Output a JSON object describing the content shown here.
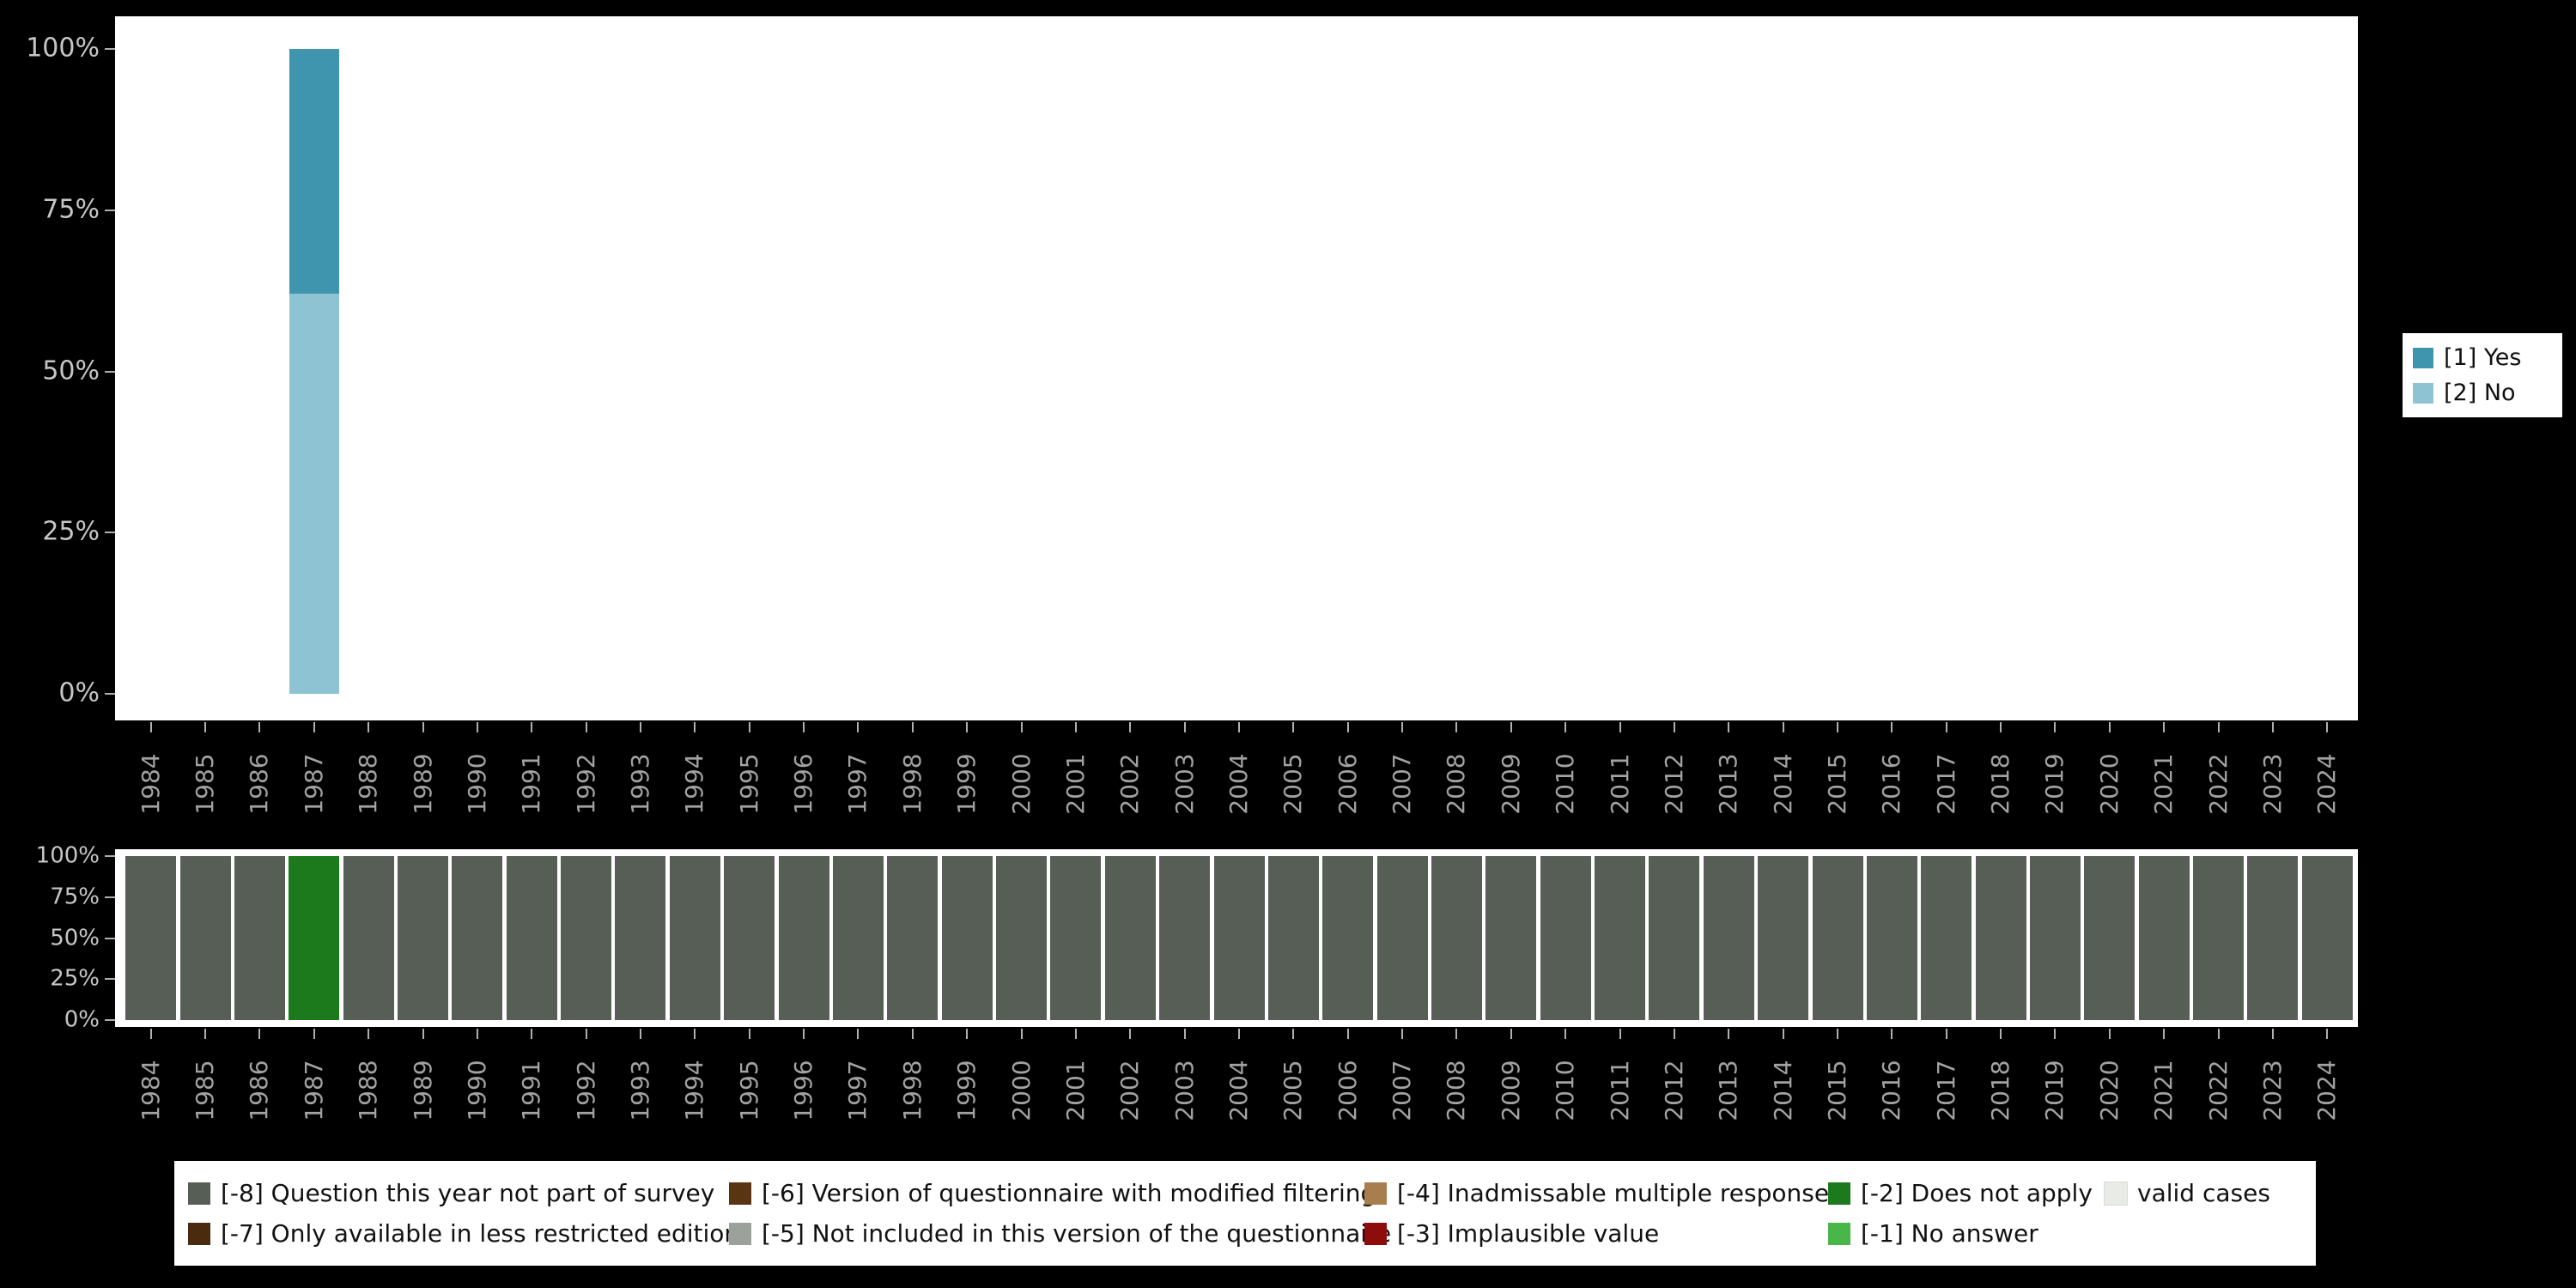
{
  "page": {
    "background": "#000000"
  },
  "palette": {
    "yes": "#3f95ad",
    "no": "#8ec3d4",
    "m8": "#565e56",
    "m7": "#4a2b0d",
    "m6": "#5a3513",
    "m5": "#9aa29a",
    "m4": "#a87e4e",
    "m3": "#8e0c0c",
    "m2": "#1c791c",
    "m1": "#49b649",
    "valid": "#e8ebe6"
  },
  "years": [
    "1984",
    "1985",
    "1986",
    "1987",
    "1988",
    "1989",
    "1990",
    "1991",
    "1992",
    "1993",
    "1994",
    "1995",
    "1996",
    "1997",
    "1998",
    "1999",
    "2000",
    "2001",
    "2002",
    "2003",
    "2004",
    "2005",
    "2006",
    "2007",
    "2008",
    "2009",
    "2010",
    "2011",
    "2012",
    "2013",
    "2014",
    "2015",
    "2016",
    "2017",
    "2018",
    "2019",
    "2020",
    "2021",
    "2022",
    "2023",
    "2024"
  ],
  "top_chart": {
    "y_tick_labels": [
      "100%",
      "75%",
      "50%",
      "25%",
      "0%"
    ],
    "legend": [
      {
        "label": "[1] Yes",
        "color_key": "yes"
      },
      {
        "label": "[2] No",
        "color_key": "no"
      }
    ],
    "bars": [
      {
        "year": "1987",
        "segments": [
          {
            "name": "[1] Yes",
            "color_key": "yes",
            "from": 62,
            "to": 100
          },
          {
            "name": "[2] No",
            "color_key": "no",
            "from": 0,
            "to": 62
          }
        ]
      }
    ]
  },
  "bottom_chart": {
    "y_tick_labels": [
      "100%",
      "75%",
      "50%",
      "25%",
      "0%"
    ],
    "default_key": "m8",
    "exceptions": {
      "1987": "m2"
    },
    "legend_rows": [
      [
        {
          "label": "[-8] Question this year not part of survey",
          "color_key": "m8"
        },
        {
          "label": "[-6] Version of questionnaire with modified filtering",
          "color_key": "m6"
        },
        {
          "label": "[-4] Inadmissable multiple response",
          "color_key": "m4"
        },
        {
          "label": "[-2] Does not apply",
          "color_key": "m2"
        },
        {
          "label": "valid cases",
          "color_key": "valid"
        }
      ],
      [
        {
          "label": "[-7] Only available in less restricted edition",
          "color_key": "m7"
        },
        {
          "label": "[-5] Not included in this version of the questionnaire",
          "color_key": "m5"
        },
        {
          "label": "[-3] Implausible value",
          "color_key": "m3"
        },
        {
          "label": "[-1] No answer",
          "color_key": "m1"
        }
      ]
    ]
  },
  "chart_data": [
    {
      "type": "bar",
      "stacked": true,
      "title": "",
      "categories": [
        "1984",
        "1985",
        "1986",
        "1987",
        "1988",
        "1989",
        "1990",
        "1991",
        "1992",
        "1993",
        "1994",
        "1995",
        "1996",
        "1997",
        "1998",
        "1999",
        "2000",
        "2001",
        "2002",
        "2003",
        "2004",
        "2005",
        "2006",
        "2007",
        "2008",
        "2009",
        "2010",
        "2011",
        "2012",
        "2013",
        "2014",
        "2015",
        "2016",
        "2017",
        "2018",
        "2019",
        "2020",
        "2021",
        "2022",
        "2023",
        "2024"
      ],
      "series": [
        {
          "name": "[1] Yes",
          "color": "#3f95ad",
          "values": [
            null,
            null,
            null,
            38,
            null,
            null,
            null,
            null,
            null,
            null,
            null,
            null,
            null,
            null,
            null,
            null,
            null,
            null,
            null,
            null,
            null,
            null,
            null,
            null,
            null,
            null,
            null,
            null,
            null,
            null,
            null,
            null,
            null,
            null,
            null,
            null,
            null,
            null,
            null,
            null,
            null
          ]
        },
        {
          "name": "[2] No",
          "color": "#8ec3d4",
          "values": [
            null,
            null,
            null,
            62,
            null,
            null,
            null,
            null,
            null,
            null,
            null,
            null,
            null,
            null,
            null,
            null,
            null,
            null,
            null,
            null,
            null,
            null,
            null,
            null,
            null,
            null,
            null,
            null,
            null,
            null,
            null,
            null,
            null,
            null,
            null,
            null,
            null,
            null,
            null,
            null,
            null
          ]
        }
      ],
      "xlabel": "",
      "ylabel": "",
      "ylim": [
        0,
        100
      ],
      "yticks": [
        "0%",
        "25%",
        "50%",
        "75%",
        "100%"
      ],
      "legend_position": "right",
      "grid": false
    },
    {
      "type": "bar",
      "stacked": true,
      "title": "",
      "categories": [
        "1984",
        "1985",
        "1986",
        "1987",
        "1988",
        "1989",
        "1990",
        "1991",
        "1992",
        "1993",
        "1994",
        "1995",
        "1996",
        "1997",
        "1998",
        "1999",
        "2000",
        "2001",
        "2002",
        "2003",
        "2004",
        "2005",
        "2006",
        "2007",
        "2008",
        "2009",
        "2010",
        "2011",
        "2012",
        "2013",
        "2014",
        "2015",
        "2016",
        "2017",
        "2018",
        "2019",
        "2020",
        "2021",
        "2022",
        "2023",
        "2024"
      ],
      "series": [
        {
          "name": "[-8] Question this year not part of survey",
          "color": "#565e56",
          "values": [
            100,
            100,
            100,
            0,
            100,
            100,
            100,
            100,
            100,
            100,
            100,
            100,
            100,
            100,
            100,
            100,
            100,
            100,
            100,
            100,
            100,
            100,
            100,
            100,
            100,
            100,
            100,
            100,
            100,
            100,
            100,
            100,
            100,
            100,
            100,
            100,
            100,
            100,
            100,
            100,
            100
          ]
        },
        {
          "name": "[-2] Does not apply",
          "color": "#1c791c",
          "values": [
            0,
            0,
            0,
            100,
            0,
            0,
            0,
            0,
            0,
            0,
            0,
            0,
            0,
            0,
            0,
            0,
            0,
            0,
            0,
            0,
            0,
            0,
            0,
            0,
            0,
            0,
            0,
            0,
            0,
            0,
            0,
            0,
            0,
            0,
            0,
            0,
            0,
            0,
            0,
            0,
            0
          ]
        }
      ],
      "xlabel": "",
      "ylabel": "",
      "ylim": [
        0,
        100
      ],
      "yticks": [
        "0%",
        "25%",
        "50%",
        "75%",
        "100%"
      ],
      "legend_position": "bottom",
      "grid": false
    }
  ]
}
